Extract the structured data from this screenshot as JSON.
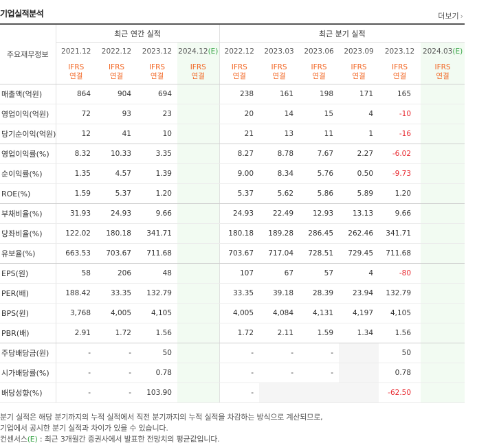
{
  "title": "기업실적분석",
  "more_link": "더보기",
  "header": {
    "row_header": "주요재무정보",
    "annual_group": "최근 연간 실적",
    "quarter_group": "최근 분기 실적",
    "annual_periods": [
      {
        "label": "2021.12",
        "est": ""
      },
      {
        "label": "2022.12",
        "est": ""
      },
      {
        "label": "2023.12",
        "est": ""
      },
      {
        "label": "2024.12",
        "est": "(E)"
      }
    ],
    "quarter_periods": [
      {
        "label": "2022.12",
        "est": ""
      },
      {
        "label": "2023.03",
        "est": ""
      },
      {
        "label": "2023.06",
        "est": ""
      },
      {
        "label": "2023.09",
        "est": ""
      },
      {
        "label": "2023.12",
        "est": ""
      },
      {
        "label": "2024.03",
        "est": "(E)"
      }
    ],
    "accounting_a": "IFRS",
    "accounting_b": "연결"
  },
  "rows": [
    {
      "label": "매출액(억원)",
      "annual": [
        "864",
        "904",
        "694",
        ""
      ],
      "quarter": [
        "238",
        "161",
        "198",
        "171",
        "165",
        ""
      ]
    },
    {
      "label": "영업이익(억원)",
      "annual": [
        "72",
        "93",
        "23",
        ""
      ],
      "quarter": [
        "20",
        "14",
        "15",
        "4",
        "-10",
        ""
      ]
    },
    {
      "label": "당기순이익(억원)",
      "annual": [
        "12",
        "41",
        "10",
        ""
      ],
      "quarter": [
        "21",
        "13",
        "11",
        "1",
        "-16",
        ""
      ]
    },
    {
      "label": "영업이익률(%)",
      "annual": [
        "8.32",
        "10.33",
        "3.35",
        ""
      ],
      "quarter": [
        "8.27",
        "8.78",
        "7.67",
        "2.27",
        "-6.02",
        ""
      ]
    },
    {
      "label": "순이익률(%)",
      "annual": [
        "1.35",
        "4.57",
        "1.39",
        ""
      ],
      "quarter": [
        "9.00",
        "8.34",
        "5.76",
        "0.50",
        "-9.73",
        ""
      ]
    },
    {
      "label": "ROE(%)",
      "annual": [
        "1.59",
        "5.37",
        "1.20",
        ""
      ],
      "quarter": [
        "5.37",
        "5.62",
        "5.86",
        "5.89",
        "1.20",
        ""
      ]
    },
    {
      "label": "부채비율(%)",
      "annual": [
        "31.93",
        "24.93",
        "9.66",
        ""
      ],
      "quarter": [
        "24.93",
        "22.49",
        "12.93",
        "13.13",
        "9.66",
        ""
      ]
    },
    {
      "label": "당좌비율(%)",
      "annual": [
        "122.02",
        "180.18",
        "341.71",
        ""
      ],
      "quarter": [
        "180.18",
        "189.28",
        "286.45",
        "262.46",
        "341.71",
        ""
      ]
    },
    {
      "label": "유보율(%)",
      "annual": [
        "663.53",
        "703.67",
        "711.68",
        ""
      ],
      "quarter": [
        "703.67",
        "717.04",
        "728.51",
        "729.45",
        "711.68",
        ""
      ]
    },
    {
      "label": "EPS(원)",
      "annual": [
        "58",
        "206",
        "48",
        ""
      ],
      "quarter": [
        "107",
        "67",
        "57",
        "4",
        "-80",
        ""
      ]
    },
    {
      "label": "PER(배)",
      "annual": [
        "188.42",
        "33.35",
        "132.79",
        ""
      ],
      "quarter": [
        "33.35",
        "39.18",
        "28.39",
        "23.94",
        "132.79",
        ""
      ]
    },
    {
      "label": "BPS(원)",
      "annual": [
        "3,768",
        "4,005",
        "4,105",
        ""
      ],
      "quarter": [
        "4,005",
        "4,084",
        "4,131",
        "4,197",
        "4,105",
        ""
      ]
    },
    {
      "label": "PBR(배)",
      "annual": [
        "2.91",
        "1.72",
        "1.56",
        ""
      ],
      "quarter": [
        "1.72",
        "2.11",
        "1.59",
        "1.34",
        "1.56",
        ""
      ]
    },
    {
      "label": "주당배당금(원)",
      "annual": [
        "-",
        "-",
        "50",
        ""
      ],
      "quarter": [
        "-",
        "-",
        "-",
        "",
        "50",
        ""
      ]
    },
    {
      "label": "시가배당률(%)",
      "annual": [
        "-",
        "-",
        "0.78",
        ""
      ],
      "quarter": [
        "-",
        "-",
        "-",
        "",
        "0.78",
        ""
      ]
    },
    {
      "label": "배당성향(%)",
      "annual": [
        "-",
        "-",
        "103.90",
        ""
      ],
      "quarter": [
        "-",
        "",
        "",
        "",
        "-62.50",
        ""
      ]
    }
  ],
  "notes": {
    "line1": "분기 실적은 해당 분기까지의 누적 실적에서 직전 분기까지의 누적 실적을 차감하는 방식으로 계산되므로,",
    "line2": "기업에서 공시한 분기 실적과 차이가 있을 수 있습니다.",
    "line3_prefix": "컨센서스",
    "line3_mark": "(E)",
    "line3_rest": " : 최근 3개월간 증권사에서 발표한 전망치의 평균값입니다."
  }
}
